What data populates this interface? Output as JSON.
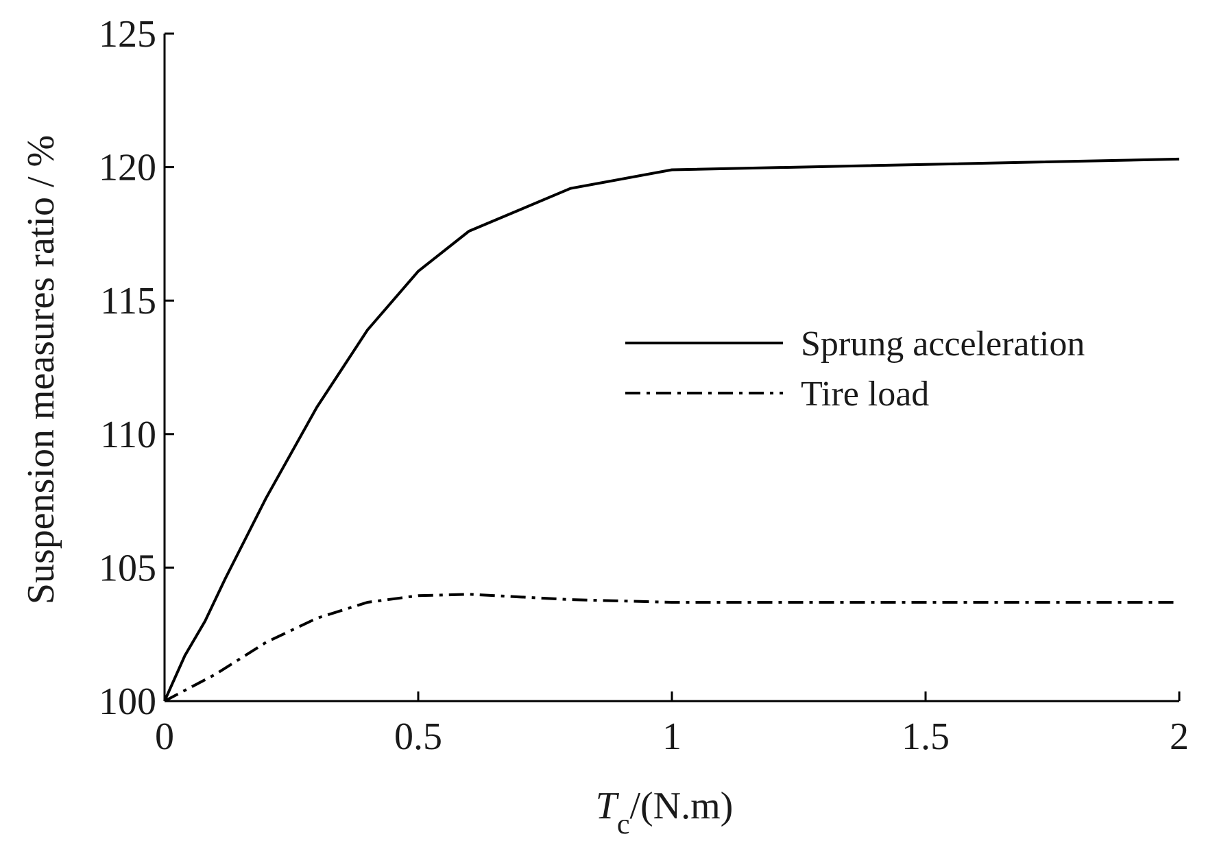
{
  "chart_data": {
    "type": "line",
    "ylabel": "Suspension measures ratio / %",
    "xlabel": {
      "symbol": "T",
      "subscript": "c",
      "unit": "/(N.m)"
    },
    "xlim": [
      0,
      2
    ],
    "ylim": [
      100,
      125
    ],
    "xticks": [
      0,
      0.5,
      1,
      1.5,
      2
    ],
    "xtick_labels": [
      "0",
      "0.5",
      "1",
      "1.5",
      "2"
    ],
    "yticks": [
      100,
      105,
      110,
      115,
      120,
      125
    ],
    "ytick_labels": [
      "100",
      "105",
      "110",
      "115",
      "120",
      "125"
    ],
    "grid": false,
    "legend_position": "center-right",
    "series": [
      {
        "name": "Sprung acceleration",
        "style": "solid",
        "color": "#000000",
        "x": [
          0,
          0.04,
          0.08,
          0.12,
          0.16,
          0.2,
          0.3,
          0.4,
          0.5,
          0.6,
          0.7,
          0.8,
          1.0,
          2.0
        ],
        "y": [
          100,
          101.7,
          103.0,
          104.6,
          106.1,
          107.6,
          111.0,
          113.9,
          116.1,
          117.6,
          118.4,
          119.2,
          119.9,
          120.3
        ]
      },
      {
        "name": "Tire load",
        "style": "dashdot",
        "color": "#000000",
        "x": [
          0,
          0.1,
          0.2,
          0.3,
          0.4,
          0.5,
          0.6,
          0.7,
          0.8,
          1.0,
          1.5,
          2.0
        ],
        "y": [
          100,
          101.0,
          102.2,
          103.1,
          103.7,
          103.95,
          104.0,
          103.9,
          103.8,
          103.7,
          103.7,
          103.7
        ]
      }
    ]
  }
}
